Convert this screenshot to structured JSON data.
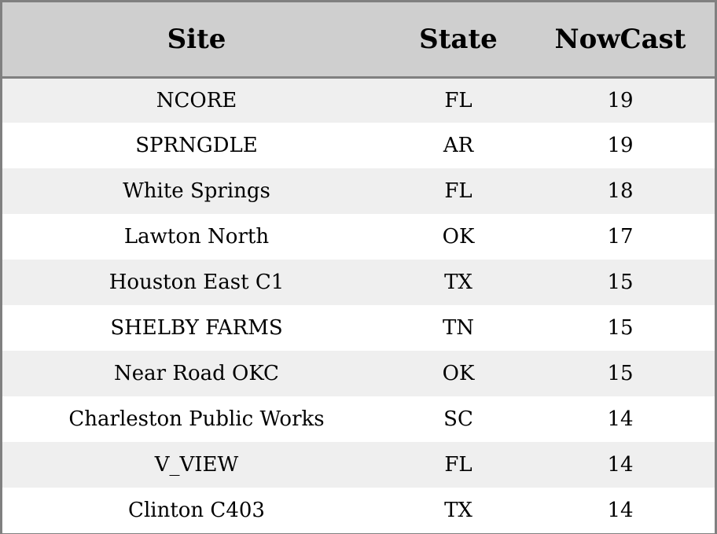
{
  "chart_data": {
    "type": "table",
    "columns": [
      "Site",
      "State",
      "NowCast"
    ],
    "rows": [
      [
        "NCORE",
        "FL",
        "19"
      ],
      [
        "SPRNGDLE",
        "AR",
        "19"
      ],
      [
        "White Springs",
        "FL",
        "18"
      ],
      [
        "Lawton North",
        "OK",
        "17"
      ],
      [
        "Houston East C1",
        "TX",
        "15"
      ],
      [
        "SHELBY FARMS",
        "TN",
        "15"
      ],
      [
        "Near Road OKC",
        "OK",
        "15"
      ],
      [
        "Charleston Public Works",
        "SC",
        "14"
      ],
      [
        "V_VIEW",
        "FL",
        "14"
      ],
      [
        "Clinton C403",
        "TX",
        "14"
      ]
    ]
  },
  "colors": {
    "header_bg": "#cfcfcf",
    "row_alt_bg": "#efefef",
    "row_bg": "#ffffff",
    "border": "#808080",
    "text": "#000000"
  }
}
